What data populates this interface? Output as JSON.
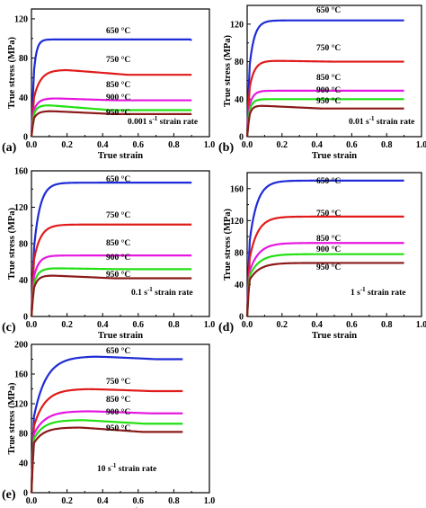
{
  "chart_data": [
    {
      "panel": "(a)",
      "type": "line",
      "xlabel": "True strain",
      "ylabel": "True stress (MPa)",
      "xlim": [
        0.0,
        1.0
      ],
      "ylim": [
        0,
        130
      ],
      "xticks": [
        "0.0",
        "0.2",
        "0.4",
        "0.6",
        "0.8",
        "1.0"
      ],
      "yticks": [
        "0",
        "40",
        "80",
        "120"
      ],
      "ytick_values": [
        0,
        40,
        80,
        120
      ],
      "note": "0.001 s-1 strain rate",
      "note_main": "0.001 s",
      "note_sup": "-1",
      "note_end": " strain rate",
      "series": [
        {
          "name": "650 °C",
          "color": "#1f2bd6",
          "peak": 99,
          "rise": 0.05,
          "soft": 0,
          "end": 98,
          "yield": 62
        },
        {
          "name": "750 °C",
          "color": "#e01b1b",
          "peak": 68,
          "rise": 0.12,
          "soft": 5,
          "end": 63,
          "yield": 38
        },
        {
          "name": "850 °C",
          "color": "#e617e0",
          "peak": 39,
          "rise": 0.08,
          "soft": 2,
          "end": 37,
          "yield": 26
        },
        {
          "name": "900 °C",
          "color": "#22e011",
          "peak": 32,
          "rise": 0.06,
          "soft": 5,
          "end": 27,
          "yield": 22
        },
        {
          "name": "950 °C",
          "color": "#8b1a1a",
          "peak": 26,
          "rise": 0.07,
          "soft": 3,
          "end": 23,
          "yield": 18
        }
      ]
    },
    {
      "panel": "(b)",
      "type": "line",
      "xlabel": "True strain",
      "ylabel": "True stress (MPa)",
      "xlim": [
        0.0,
        1.0
      ],
      "ylim": [
        0,
        140
      ],
      "xticks": [
        "0.0",
        "0.2",
        "0.4",
        "0.6",
        "0.8",
        "1.0"
      ],
      "yticks": [
        "0",
        "40",
        "80",
        "120"
      ],
      "ytick_values": [
        0,
        40,
        80,
        120
      ],
      "note": "0.01 s-1 strain rate",
      "note_main": "0.01 s",
      "note_sup": "-1",
      "note_end": " strain rate",
      "series": [
        {
          "name": "650 °C",
          "color": "#1f2bd6",
          "peak": 124,
          "rise": 0.09,
          "soft": 0,
          "end": 124,
          "yield": 72
        },
        {
          "name": "750 °C",
          "color": "#e01b1b",
          "peak": 81,
          "rise": 0.09,
          "soft": 1,
          "end": 80,
          "yield": 50
        },
        {
          "name": "850 °C",
          "color": "#e617e0",
          "peak": 49,
          "rise": 0.07,
          "soft": 0,
          "end": 49,
          "yield": 32
        },
        {
          "name": "900 °C",
          "color": "#22e011",
          "peak": 40,
          "rise": 0.06,
          "soft": 0,
          "end": 40,
          "yield": 27
        },
        {
          "name": "950 °C",
          "color": "#8b1a1a",
          "peak": 33,
          "rise": 0.05,
          "soft": 3,
          "end": 30,
          "yield": 22
        }
      ]
    },
    {
      "panel": "(c)",
      "type": "line",
      "xlabel": "True strain",
      "ylabel": "True stress (MPa)",
      "xlim": [
        0.0,
        1.0
      ],
      "ylim": [
        0,
        160
      ],
      "xticks": [
        "0.0",
        "0.2",
        "0.4",
        "0.6",
        "0.8",
        "1.0"
      ],
      "yticks": [
        "0",
        "40",
        "80",
        "120",
        "160"
      ],
      "ytick_values": [
        0,
        40,
        80,
        120,
        160
      ],
      "note": "0.1 s-1 strain rate",
      "note_main": "0.1 s",
      "note_sup": "-1",
      "note_end": " strain rate",
      "series": [
        {
          "name": "650 °C",
          "color": "#1f2bd6",
          "peak": 147,
          "rise": 0.11,
          "soft": 0,
          "end": 147,
          "yield": 70
        },
        {
          "name": "750 °C",
          "color": "#e01b1b",
          "peak": 101,
          "rise": 0.12,
          "soft": 0,
          "end": 101,
          "yield": 60
        },
        {
          "name": "850 °C",
          "color": "#e617e0",
          "peak": 67,
          "rise": 0.09,
          "soft": 0,
          "end": 67,
          "yield": 42
        },
        {
          "name": "900 °C",
          "color": "#22e011",
          "peak": 53,
          "rise": 0.08,
          "soft": 1,
          "end": 52,
          "yield": 35
        },
        {
          "name": "950 °C",
          "color": "#8b1a1a",
          "peak": 45,
          "rise": 0.07,
          "soft": 3,
          "end": 42,
          "yield": 30
        }
      ]
    },
    {
      "panel": "(d)",
      "type": "line",
      "xlabel": "True strain",
      "ylabel": "True stress (MPa)",
      "xlim": [
        0.0,
        1.0
      ],
      "ylim": [
        0,
        180
      ],
      "xticks": [
        "0.0",
        "0.2",
        "0.4",
        "0.6",
        "0.8",
        "1.0"
      ],
      "yticks": [
        "0",
        "40",
        "80",
        "120",
        "160"
      ],
      "ytick_values": [
        0,
        40,
        80,
        120,
        160
      ],
      "note": "1 s-1 strain rate",
      "note_main": "1 s",
      "note_sup": "-1",
      "note_end": " strain rate",
      "series": [
        {
          "name": "650 °C",
          "color": "#1f2bd6",
          "peak": 170,
          "rise": 0.14,
          "soft": 0,
          "end": 170,
          "yield": 90
        },
        {
          "name": "750 °C",
          "color": "#e01b1b",
          "peak": 125,
          "rise": 0.15,
          "soft": 0,
          "end": 125,
          "yield": 70
        },
        {
          "name": "850 °C",
          "color": "#e617e0",
          "peak": 92,
          "rise": 0.17,
          "soft": 0,
          "end": 92,
          "yield": 55
        },
        {
          "name": "900 °C",
          "color": "#22e011",
          "peak": 78,
          "rise": 0.18,
          "soft": 0,
          "end": 78,
          "yield": 50
        },
        {
          "name": "950 °C",
          "color": "#8b1a1a",
          "peak": 67,
          "rise": 0.18,
          "soft": 0,
          "end": 67,
          "yield": 45
        }
      ]
    },
    {
      "panel": "(e)",
      "type": "line",
      "xlabel": "True strain",
      "ylabel": "True stress (MPa)",
      "xlim": [
        0.0,
        1.0
      ],
      "ylim": [
        0,
        200
      ],
      "xticks": [
        "0.0",
        "0.2",
        "0.4",
        "0.6",
        "0.8",
        "1.0"
      ],
      "yticks": [
        "0",
        "40",
        "80",
        "120",
        "160",
        "200"
      ],
      "ytick_values": [
        0,
        40,
        80,
        120,
        160,
        200
      ],
      "note": "10 s-1 strain rate",
      "note_main": "10 s",
      "note_sup": "-1",
      "note_end": " strain rate",
      "series": [
        {
          "name": "650 °C",
          "color": "#1f2bd6",
          "peak": 184,
          "rise": 0.22,
          "soft": 4,
          "end": 180,
          "yield": 100
        },
        {
          "name": "750 °C",
          "color": "#e01b1b",
          "peak": 140,
          "rise": 0.2,
          "soft": 3,
          "end": 137,
          "yield": 88
        },
        {
          "name": "850 °C",
          "color": "#e617e0",
          "peak": 110,
          "rise": 0.2,
          "soft": 3,
          "end": 107,
          "yield": 78
        },
        {
          "name": "900 °C",
          "color": "#22e011",
          "peak": 98,
          "rise": 0.18,
          "soft": 5,
          "end": 93,
          "yield": 72
        },
        {
          "name": "950 °C",
          "color": "#8b1a1a",
          "peak": 88,
          "rise": 0.17,
          "soft": 6,
          "end": 82,
          "yield": 66
        }
      ]
    }
  ]
}
